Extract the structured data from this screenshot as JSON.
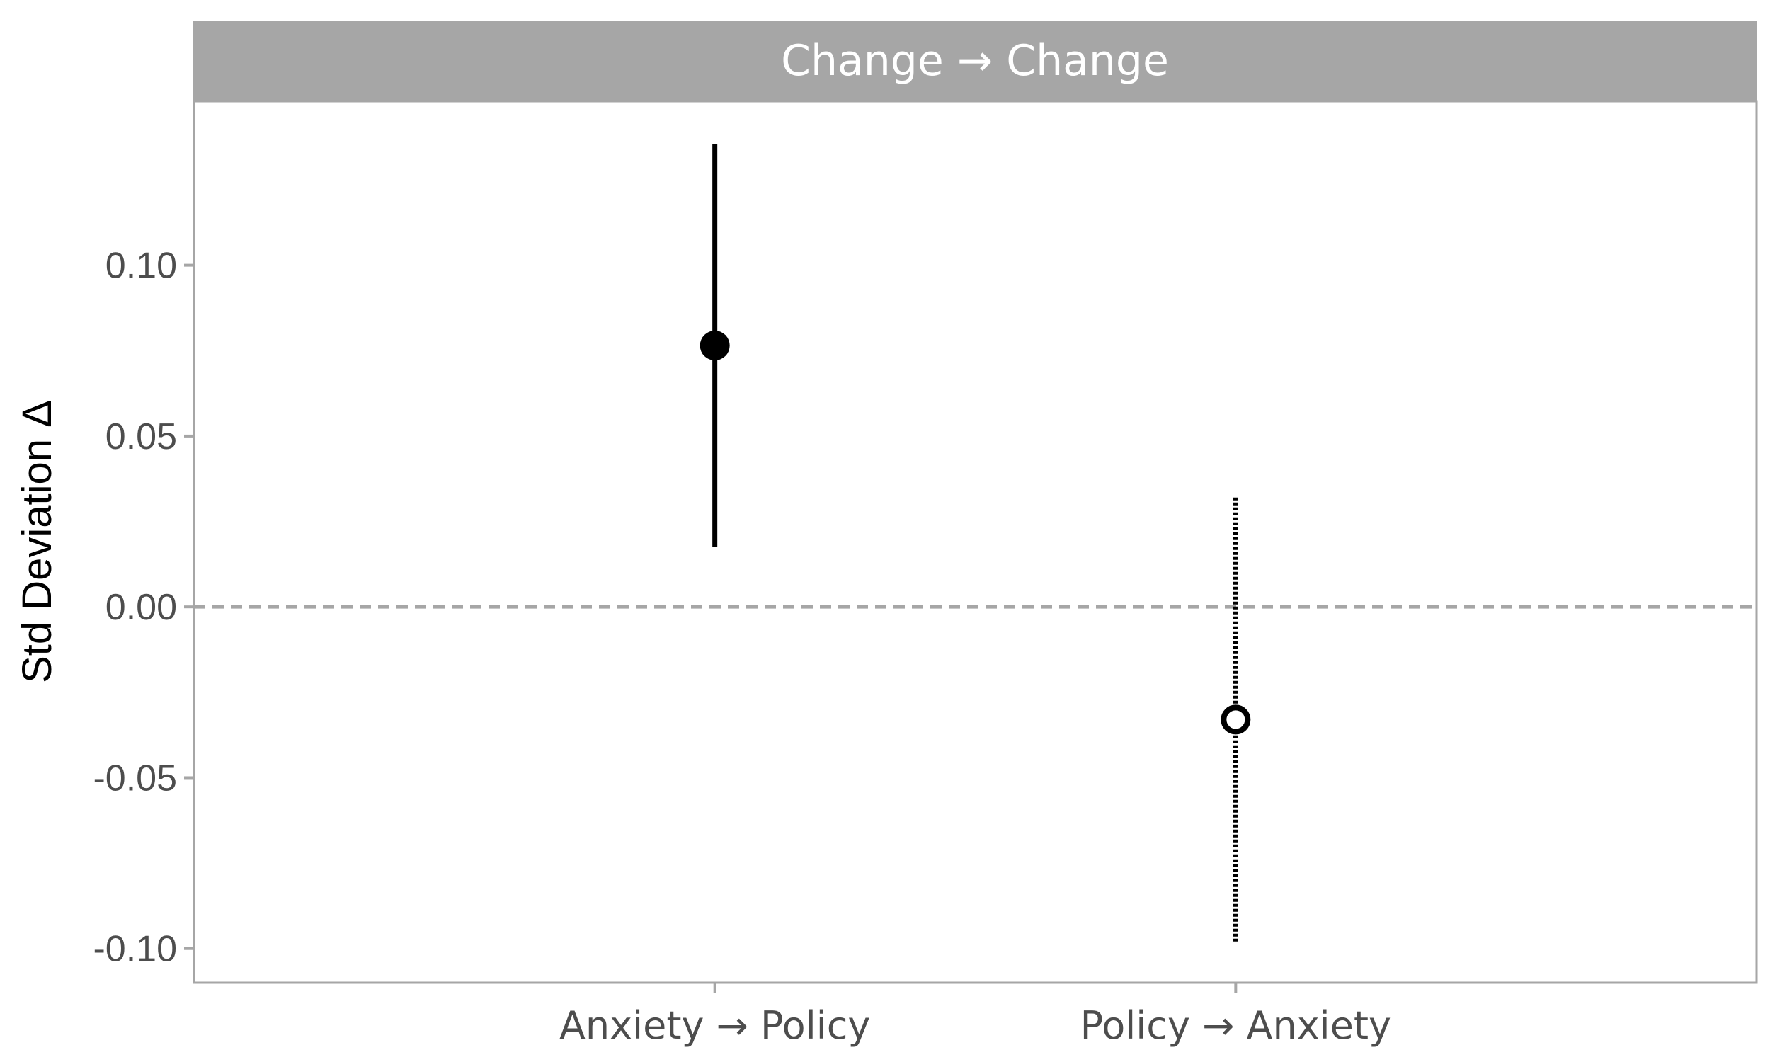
{
  "chart_data": {
    "type": "errorbar",
    "facet_title": "Change → Change",
    "ylabel": "Std Deviation Δ",
    "xlabel": "",
    "ylim": [
      -0.11,
      0.148
    ],
    "yticks": [
      0.1,
      0.05,
      0.0,
      -0.05,
      -0.1
    ],
    "ytick_labels": [
      "0.10",
      "0.05",
      "0.00",
      "-0.05",
      "-0.10"
    ],
    "reference_line": 0.0,
    "categories": [
      "Anxiety → Policy",
      "Policy → Anxiety"
    ],
    "points": [
      {
        "category": "Anxiety → Policy",
        "estimate": 0.0765,
        "lower": 0.0175,
        "upper": 0.1355,
        "marker": "filled",
        "line": "solid"
      },
      {
        "category": "Policy → Anxiety",
        "estimate": -0.033,
        "lower": -0.0985,
        "upper": 0.032,
        "marker": "open",
        "line": "dotted"
      }
    ],
    "grid": false,
    "colors": {
      "strip": "#a6a6a6",
      "axis": "#a6a6a6",
      "marks": "#000000",
      "reference": "#a6a6a6"
    }
  }
}
